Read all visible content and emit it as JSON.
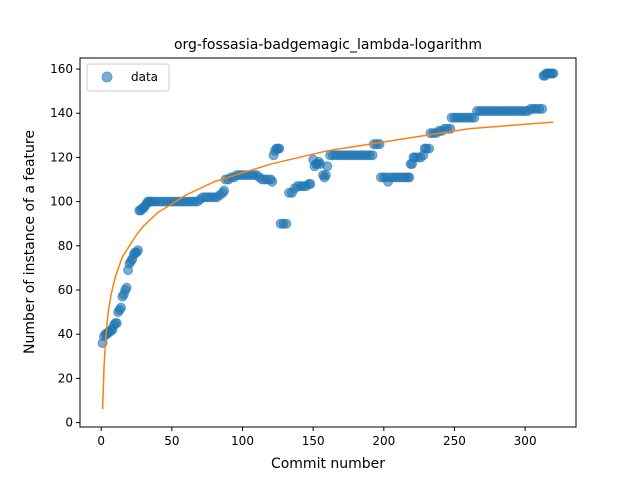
{
  "chart_data": {
    "type": "scatter",
    "title": "org-fossasia-badgemagic_lambda-logarithm",
    "xlabel": "Commit number",
    "ylabel": "Number of instance of a feature",
    "xlim": [
      -15,
      336
    ],
    "ylim": [
      -2,
      165
    ],
    "xticks": [
      0,
      50,
      100,
      150,
      200,
      250,
      300
    ],
    "yticks": [
      0,
      20,
      40,
      60,
      80,
      100,
      120,
      140,
      160
    ],
    "legend": {
      "placement": "top-left",
      "entries": [
        {
          "label": "data",
          "marker": "circle"
        }
      ]
    },
    "grid": false,
    "colors": {
      "points": "#1f77b4",
      "fit": "#ff7f0e"
    },
    "series": [
      {
        "name": "data",
        "kind": "points",
        "points": [
          [
            1,
            36
          ],
          [
            2,
            39
          ],
          [
            3,
            40
          ],
          [
            4,
            40
          ],
          [
            5,
            41
          ],
          [
            6,
            41
          ],
          [
            7,
            42
          ],
          [
            8,
            42
          ],
          [
            9,
            44
          ],
          [
            10,
            45
          ],
          [
            11,
            45
          ],
          [
            12,
            50
          ],
          [
            13,
            51
          ],
          [
            14,
            52
          ],
          [
            15,
            57
          ],
          [
            16,
            58
          ],
          [
            17,
            60
          ],
          [
            18,
            61
          ],
          [
            19,
            69
          ],
          [
            20,
            72
          ],
          [
            21,
            73
          ],
          [
            22,
            74
          ],
          [
            23,
            76
          ],
          [
            24,
            77
          ],
          [
            25,
            77
          ],
          [
            26,
            78
          ],
          [
            27,
            96
          ],
          [
            28,
            96
          ],
          [
            29,
            97
          ],
          [
            30,
            97
          ],
          [
            31,
            98
          ],
          [
            32,
            99
          ],
          [
            33,
            100
          ],
          [
            34,
            100
          ],
          [
            35,
            100
          ],
          [
            36,
            100
          ],
          [
            38,
            100
          ],
          [
            40,
            100
          ],
          [
            42,
            100
          ],
          [
            44,
            100
          ],
          [
            46,
            100
          ],
          [
            48,
            100
          ],
          [
            50,
            100
          ],
          [
            52,
            100
          ],
          [
            54,
            100
          ],
          [
            56,
            100
          ],
          [
            58,
            100
          ],
          [
            60,
            100
          ],
          [
            62,
            100
          ],
          [
            64,
            100
          ],
          [
            66,
            100
          ],
          [
            68,
            100
          ],
          [
            70,
            101
          ],
          [
            72,
            102
          ],
          [
            74,
            102
          ],
          [
            76,
            102
          ],
          [
            78,
            102
          ],
          [
            80,
            102
          ],
          [
            82,
            102
          ],
          [
            84,
            103
          ],
          [
            86,
            104
          ],
          [
            87,
            105
          ],
          [
            88,
            110
          ],
          [
            90,
            110
          ],
          [
            92,
            111
          ],
          [
            94,
            111
          ],
          [
            96,
            112
          ],
          [
            98,
            112
          ],
          [
            100,
            112
          ],
          [
            102,
            112
          ],
          [
            104,
            112
          ],
          [
            106,
            112
          ],
          [
            108,
            112
          ],
          [
            110,
            112
          ],
          [
            112,
            111
          ],
          [
            114,
            110
          ],
          [
            116,
            110
          ],
          [
            118,
            110
          ],
          [
            120,
            110
          ],
          [
            121,
            109
          ],
          [
            122,
            121
          ],
          [
            123,
            123
          ],
          [
            124,
            124
          ],
          [
            125,
            124
          ],
          [
            126,
            124
          ],
          [
            127,
            90
          ],
          [
            129,
            90
          ],
          [
            131,
            90
          ],
          [
            133,
            104
          ],
          [
            135,
            104
          ],
          [
            137,
            106
          ],
          [
            139,
            107
          ],
          [
            141,
            107
          ],
          [
            143,
            107
          ],
          [
            145,
            107
          ],
          [
            147,
            108
          ],
          [
            148,
            108
          ],
          [
            150,
            119
          ],
          [
            151,
            116
          ],
          [
            152,
            117
          ],
          [
            153,
            117
          ],
          [
            154,
            118
          ],
          [
            155,
            117
          ],
          [
            157,
            112
          ],
          [
            158,
            111
          ],
          [
            159,
            112
          ],
          [
            160,
            116
          ],
          [
            162,
            121
          ],
          [
            164,
            121
          ],
          [
            166,
            121
          ],
          [
            168,
            121
          ],
          [
            170,
            121
          ],
          [
            172,
            121
          ],
          [
            174,
            121
          ],
          [
            176,
            121
          ],
          [
            178,
            121
          ],
          [
            180,
            121
          ],
          [
            182,
            121
          ],
          [
            184,
            121
          ],
          [
            186,
            121
          ],
          [
            188,
            121
          ],
          [
            190,
            121
          ],
          [
            192,
            121
          ],
          [
            193,
            126
          ],
          [
            195,
            126
          ],
          [
            197,
            126
          ],
          [
            198,
            111
          ],
          [
            200,
            111
          ],
          [
            202,
            111
          ],
          [
            203,
            109
          ],
          [
            205,
            111
          ],
          [
            207,
            111
          ],
          [
            209,
            111
          ],
          [
            211,
            111
          ],
          [
            213,
            111
          ],
          [
            215,
            111
          ],
          [
            217,
            111
          ],
          [
            218,
            111
          ],
          [
            219,
            117
          ],
          [
            220,
            117
          ],
          [
            221,
            120
          ],
          [
            222,
            120
          ],
          [
            224,
            120
          ],
          [
            226,
            120
          ],
          [
            228,
            121
          ],
          [
            229,
            124
          ],
          [
            230,
            124
          ],
          [
            232,
            124
          ],
          [
            233,
            131
          ],
          [
            235,
            131
          ],
          [
            237,
            131
          ],
          [
            239,
            132
          ],
          [
            241,
            132
          ],
          [
            243,
            133
          ],
          [
            245,
            133
          ],
          [
            247,
            133
          ],
          [
            248,
            138
          ],
          [
            250,
            138
          ],
          [
            252,
            138
          ],
          [
            254,
            138
          ],
          [
            256,
            138
          ],
          [
            258,
            138
          ],
          [
            260,
            138
          ],
          [
            262,
            138
          ],
          [
            264,
            138
          ],
          [
            266,
            141
          ],
          [
            268,
            141
          ],
          [
            270,
            141
          ],
          [
            272,
            141
          ],
          [
            274,
            141
          ],
          [
            276,
            141
          ],
          [
            278,
            141
          ],
          [
            280,
            141
          ],
          [
            282,
            141
          ],
          [
            284,
            141
          ],
          [
            286,
            141
          ],
          [
            288,
            141
          ],
          [
            290,
            141
          ],
          [
            292,
            141
          ],
          [
            294,
            141
          ],
          [
            296,
            141
          ],
          [
            298,
            141
          ],
          [
            300,
            141
          ],
          [
            302,
            141
          ],
          [
            304,
            142
          ],
          [
            306,
            142
          ],
          [
            308,
            142
          ],
          [
            310,
            142
          ],
          [
            312,
            142
          ],
          [
            313,
            157
          ],
          [
            314,
            157
          ],
          [
            315,
            158
          ],
          [
            316,
            158
          ],
          [
            317,
            158
          ],
          [
            318,
            158
          ],
          [
            319,
            158
          ],
          [
            320,
            158
          ]
        ]
      },
      {
        "name": "",
        "kind": "curve",
        "points": [
          [
            1,
            6
          ],
          [
            2,
            25
          ],
          [
            3,
            36
          ],
          [
            4,
            44
          ],
          [
            5,
            50
          ],
          [
            7,
            58
          ],
          [
            10,
            66
          ],
          [
            15,
            75
          ],
          [
            20,
            80
          ],
          [
            25,
            85
          ],
          [
            30,
            89
          ],
          [
            40,
            95
          ],
          [
            50,
            99
          ],
          [
            60,
            103
          ],
          [
            70,
            106
          ],
          [
            80,
            109
          ],
          [
            90,
            111
          ],
          [
            100,
            113
          ],
          [
            120,
            117
          ],
          [
            140,
            120
          ],
          [
            160,
            123
          ],
          [
            180,
            125
          ],
          [
            200,
            127
          ],
          [
            220,
            129
          ],
          [
            240,
            131
          ],
          [
            260,
            133
          ],
          [
            280,
            134
          ],
          [
            300,
            135
          ],
          [
            320,
            136
          ]
        ]
      }
    ]
  }
}
